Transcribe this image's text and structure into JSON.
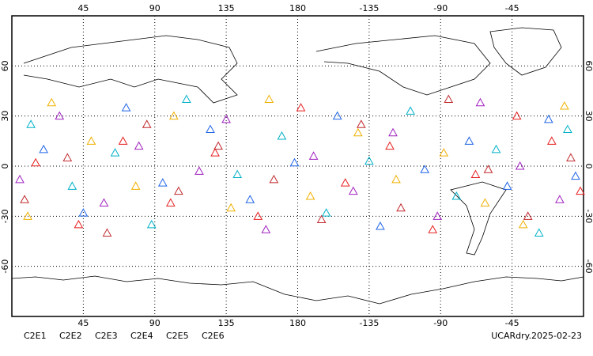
{
  "chart_data": {
    "type": "scatter",
    "xlim": [
      0,
      360
    ],
    "ylim": [
      -90,
      90
    ],
    "xticks": [
      45,
      90,
      135,
      180,
      {
        "value": 225,
        "label": "-135"
      },
      {
        "value": 270,
        "label": "-90"
      },
      {
        "value": 315,
        "label": "-45"
      }
    ],
    "yticks": [
      -60,
      -30,
      0,
      30,
      60
    ],
    "grid": true,
    "annotation": "UCARdry.2025-02-23",
    "series": [
      {
        "name": "C2E1",
        "color": "#00b0c8",
        "x": [
          12,
          38,
          65,
          88,
          110,
          142,
          170,
          198,
          225,
          251,
          280,
          305,
          332,
          350
        ],
        "values": [
          25,
          -12,
          8,
          -35,
          40,
          -5,
          18,
          -28,
          3,
          33,
          -18,
          10,
          -40,
          22
        ]
      },
      {
        "name": "C2E2",
        "color": "#a020c0",
        "x": [
          5,
          30,
          58,
          80,
          118,
          135,
          160,
          190,
          215,
          240,
          268,
          295,
          320,
          345
        ],
        "values": [
          -8,
          30,
          -22,
          12,
          -3,
          28,
          -38,
          6,
          -15,
          20,
          -30,
          38,
          0,
          -20
        ]
      },
      {
        "name": "C2E3",
        "color": "#1e64e6",
        "x": [
          20,
          45,
          72,
          95,
          125,
          150,
          178,
          205,
          232,
          260,
          288,
          312,
          338,
          355
        ],
        "values": [
          10,
          -28,
          35,
          -10,
          22,
          -20,
          2,
          30,
          -36,
          -2,
          15,
          -12,
          28,
          -6
        ]
      },
      {
        "name": "C2E4",
        "color": "#c0282c",
        "x": [
          8,
          35,
          60,
          85,
          105,
          130,
          165,
          195,
          220,
          245,
          275,
          300,
          325,
          352
        ],
        "values": [
          -20,
          5,
          -40,
          25,
          -15,
          12,
          -8,
          -32,
          25,
          -25,
          40,
          -2,
          -30,
          5
        ]
      },
      {
        "name": "C2E5",
        "color": "#e61e1e",
        "x": [
          15,
          42,
          70,
          100,
          128,
          155,
          182,
          210,
          238,
          265,
          292,
          318,
          340,
          358
        ],
        "values": [
          2,
          -35,
          15,
          -22,
          8,
          -30,
          35,
          -10,
          12,
          -38,
          -5,
          30,
          15,
          -15
        ]
      },
      {
        "name": "C2E6",
        "color": "#f0b000",
        "x": [
          25,
          50,
          78,
          102,
          138,
          162,
          188,
          218,
          242,
          272,
          298,
          322,
          348,
          10
        ],
        "values": [
          38,
          15,
          -12,
          30,
          -25,
          40,
          -18,
          20,
          -8,
          8,
          -22,
          -35,
          36,
          -30
        ]
      }
    ]
  }
}
